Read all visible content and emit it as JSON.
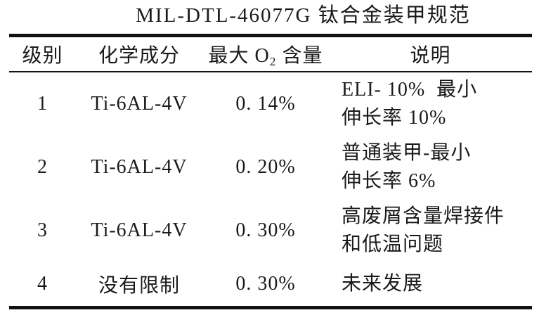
{
  "title": "MIL-DTL-46077G 钛合金装甲规范",
  "colors": {
    "background": "#ffffff",
    "text": "#1a1a1a",
    "rule": "#111111"
  },
  "table": {
    "headers": {
      "grade": "级别",
      "composition": "化学成分",
      "max_o2_pre": "最大 O",
      "max_o2_sub": "2",
      "max_o2_post": " 含量",
      "description": "说明"
    },
    "rows": [
      {
        "grade": "1",
        "composition": "Ti-6AL-4V",
        "max_o2": "0. 14%",
        "desc_line1": "ELI- 10%  最小",
        "desc_line2": "伸长率 10%"
      },
      {
        "grade": "2",
        "composition": "Ti-6AL-4V",
        "max_o2": "0. 20%",
        "desc_line1": "普通装甲-最小",
        "desc_line2": "伸长率 6%"
      },
      {
        "grade": "3",
        "composition": "Ti-6AL-4V",
        "max_o2": "0. 30%",
        "desc_line1": "高废屑含量焊接件",
        "desc_line2": "和低温问题"
      },
      {
        "grade": "4",
        "composition": "没有限制",
        "max_o2": "0. 30%",
        "desc_line1": "未来发展"
      }
    ]
  }
}
